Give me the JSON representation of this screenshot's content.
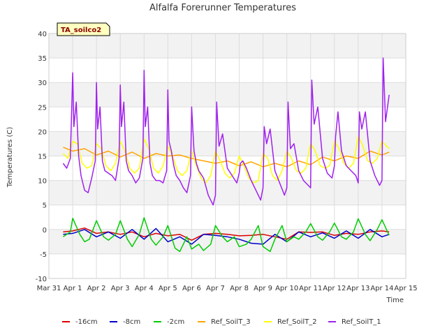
{
  "chart_data": {
    "type": "line",
    "title": "Alfalfa Forerunner Temperatures",
    "xlabel": "Time",
    "ylabel": "Temperatures (C)",
    "ylim": [
      -10,
      40
    ],
    "yticks": [
      -10,
      -5,
      0,
      5,
      10,
      15,
      20,
      25,
      30,
      35,
      40
    ],
    "xlim": [
      0,
      15
    ],
    "xtick_labels": [
      "Mar 31",
      "Apr 1",
      "Apr 2",
      "Apr 3",
      "Apr 4",
      "Apr 5",
      "Apr 6",
      "Apr 7",
      "Apr 8",
      "Apr 9",
      "Apr 10",
      "Apr 11",
      "Apr 12",
      "Apr 13",
      "Apr 14",
      "Apr 15"
    ],
    "x_unit": "days since Mar 31",
    "badge": "TA_soilco2",
    "grid": true,
    "legend_position": "bottom",
    "series": [
      {
        "name": "-16cm",
        "color": "#dd0000",
        "x": [
          0.6,
          1.0,
          1.5,
          2.0,
          2.5,
          3.0,
          3.5,
          4.0,
          4.5,
          5.0,
          5.5,
          6.0,
          6.5,
          7.0,
          7.5,
          8.0,
          8.5,
          9.0,
          9.5,
          10.0,
          10.5,
          11.0,
          11.5,
          12.0,
          12.5,
          13.0,
          13.5,
          14.0,
          14.3
        ],
        "y": [
          -0.5,
          -0.3,
          0.3,
          -0.8,
          -0.5,
          -1.0,
          -0.5,
          -1.5,
          -0.8,
          -1.3,
          -1.0,
          -2.2,
          -1.0,
          -0.8,
          -1.0,
          -1.3,
          -1.2,
          -1.0,
          -1.5,
          -2.0,
          -0.5,
          -0.6,
          -0.5,
          -1.2,
          -0.8,
          -1.0,
          -0.5,
          -0.3,
          -0.5
        ]
      },
      {
        "name": "-8cm",
        "color": "#0000cc",
        "x": [
          0.6,
          1.0,
          1.5,
          2.0,
          2.5,
          3.0,
          3.5,
          4.0,
          4.5,
          5.0,
          5.5,
          6.0,
          6.5,
          7.0,
          7.5,
          8.0,
          8.5,
          9.0,
          9.5,
          10.0,
          10.5,
          11.0,
          11.5,
          12.0,
          12.5,
          13.0,
          13.5,
          14.0,
          14.3
        ],
        "y": [
          -1.0,
          -0.8,
          0.0,
          -1.5,
          -0.5,
          -1.8,
          0.0,
          -2.0,
          0.2,
          -2.5,
          -1.5,
          -3.0,
          -1.0,
          -1.2,
          -1.5,
          -2.0,
          -2.8,
          -3.0,
          -1.0,
          -2.5,
          -0.5,
          -1.5,
          -0.7,
          -1.8,
          -0.3,
          -1.8,
          0.0,
          -1.5,
          -1.0
        ]
      },
      {
        "name": "-2cm",
        "color": "#00cc00",
        "x": [
          0.6,
          0.9,
          1.0,
          1.3,
          1.5,
          1.7,
          2.0,
          2.3,
          2.5,
          2.8,
          3.0,
          3.3,
          3.5,
          3.8,
          4.0,
          4.3,
          4.5,
          4.8,
          5.0,
          5.3,
          5.5,
          5.8,
          6.0,
          6.3,
          6.5,
          6.8,
          7.0,
          7.3,
          7.5,
          7.8,
          8.0,
          8.3,
          8.5,
          8.8,
          9.0,
          9.3,
          9.5,
          9.8,
          10.0,
          10.3,
          10.5,
          10.8,
          11.0,
          11.3,
          11.5,
          11.8,
          12.0,
          12.3,
          12.5,
          12.8,
          13.0,
          13.3,
          13.5,
          13.8,
          14.0,
          14.3
        ],
        "y": [
          -1.5,
          -0.5,
          2.3,
          -1.0,
          -2.5,
          -2.0,
          1.8,
          -1.5,
          -2.2,
          -1.0,
          1.8,
          -2.0,
          -3.5,
          -1.0,
          2.4,
          -2.0,
          -3.2,
          -1.5,
          0.8,
          -3.8,
          -4.5,
          -1.5,
          -4.0,
          -3.0,
          -4.3,
          -3.0,
          0.8,
          -1.5,
          -2.5,
          -1.5,
          -3.5,
          -3.0,
          -2.0,
          0.8,
          -3.5,
          -4.5,
          -2.0,
          0.8,
          -2.5,
          -1.5,
          -2.0,
          -0.5,
          1.2,
          -1.5,
          -2.2,
          -0.5,
          1.3,
          -1.5,
          -2.0,
          -0.5,
          2.2,
          -1.0,
          -2.3,
          0.0,
          2.0,
          -1.2
        ]
      },
      {
        "name": "Ref_SoilT_3",
        "color": "#ffa500",
        "x": [
          0.6,
          1.0,
          1.5,
          2.0,
          2.5,
          3.0,
          3.5,
          4.0,
          4.5,
          5.0,
          5.5,
          6.0,
          6.5,
          7.0,
          7.5,
          8.0,
          8.5,
          9.0,
          9.5,
          10.0,
          10.5,
          11.0,
          11.5,
          12.0,
          12.5,
          13.0,
          13.5,
          14.0,
          14.3
        ],
        "y": [
          16.8,
          16.0,
          16.5,
          15.2,
          16.0,
          14.8,
          15.8,
          14.5,
          15.5,
          15.0,
          15.2,
          14.5,
          14.0,
          13.5,
          14.0,
          13.0,
          13.8,
          12.8,
          13.5,
          12.8,
          14.0,
          13.2,
          14.8,
          14.0,
          15.0,
          14.5,
          16.0,
          15.2,
          15.8
        ]
      },
      {
        "name": "Ref_SoilT_2",
        "color": "#ffff00",
        "x": [
          0.6,
          0.8,
          1.0,
          1.2,
          1.4,
          1.6,
          1.8,
          2.0,
          2.2,
          2.4,
          2.6,
          2.8,
          3.0,
          3.2,
          3.4,
          3.6,
          3.8,
          4.0,
          4.2,
          4.4,
          4.6,
          4.8,
          5.0,
          5.2,
          5.4,
          5.6,
          5.8,
          6.0,
          6.2,
          6.4,
          6.6,
          6.8,
          7.0,
          7.2,
          7.4,
          7.6,
          7.8,
          8.0,
          8.2,
          8.4,
          8.6,
          8.8,
          9.0,
          9.2,
          9.4,
          9.6,
          9.8,
          10.0,
          10.2,
          10.4,
          10.6,
          10.8,
          11.0,
          11.2,
          11.4,
          11.6,
          11.8,
          12.0,
          12.2,
          12.4,
          12.6,
          12.8,
          13.0,
          13.2,
          13.4,
          13.6,
          13.8,
          14.0,
          14.3
        ],
        "y": [
          15.5,
          14.5,
          18.0,
          17.5,
          13.5,
          12.5,
          13.0,
          17.5,
          16.5,
          13.0,
          12.0,
          13.5,
          18.0,
          16.0,
          12.5,
          11.5,
          12.5,
          18.5,
          16.5,
          12.5,
          11.5,
          13.0,
          17.0,
          15.0,
          12.0,
          11.0,
          12.0,
          16.0,
          13.0,
          10.5,
          9.5,
          11.0,
          16.0,
          14.0,
          11.5,
          10.5,
          11.5,
          15.0,
          13.0,
          10.5,
          9.5,
          10.0,
          15.5,
          14.5,
          11.0,
          10.0,
          12.0,
          16.0,
          14.5,
          12.0,
          11.5,
          12.5,
          17.5,
          16.0,
          13.0,
          12.5,
          13.0,
          18.0,
          16.5,
          13.5,
          12.5,
          13.5,
          19.0,
          17.0,
          14.0,
          13.5,
          14.5,
          18.0,
          16.5
        ]
      },
      {
        "name": "Ref_SoilT_1",
        "color": "#a020f0",
        "x": [
          0.6,
          0.75,
          0.9,
          1.0,
          1.05,
          1.15,
          1.25,
          1.35,
          1.5,
          1.65,
          1.8,
          1.95,
          2.0,
          2.05,
          2.15,
          2.25,
          2.35,
          2.5,
          2.65,
          2.8,
          2.95,
          3.0,
          3.05,
          3.15,
          3.25,
          3.35,
          3.5,
          3.65,
          3.8,
          3.95,
          4.0,
          4.05,
          4.15,
          4.25,
          4.35,
          4.5,
          4.65,
          4.8,
          4.95,
          5.0,
          5.05,
          5.15,
          5.25,
          5.35,
          5.5,
          5.65,
          5.8,
          5.95,
          6.0,
          6.1,
          6.2,
          6.3,
          6.5,
          6.7,
          6.9,
          7.0,
          7.05,
          7.15,
          7.3,
          7.5,
          7.7,
          7.9,
          8.0,
          8.05,
          8.15,
          8.3,
          8.5,
          8.7,
          8.9,
          9.0,
          9.05,
          9.15,
          9.3,
          9.5,
          9.7,
          9.9,
          10.0,
          10.05,
          10.15,
          10.3,
          10.5,
          10.7,
          10.9,
          11.0,
          11.05,
          11.15,
          11.3,
          11.5,
          11.7,
          11.9,
          12.0,
          12.05,
          12.15,
          12.3,
          12.5,
          12.7,
          12.9,
          13.0,
          13.05,
          13.15,
          13.3,
          13.5,
          13.7,
          13.9,
          14.0,
          14.05,
          14.15,
          14.3
        ],
        "y": [
          13.5,
          12.5,
          14.5,
          32.0,
          21.0,
          26.0,
          15.0,
          11.0,
          8.0,
          7.5,
          10.5,
          14.0,
          30.0,
          20.5,
          25.0,
          14.0,
          12.0,
          11.5,
          11.0,
          10.0,
          14.5,
          29.5,
          21.0,
          26.0,
          14.0,
          12.0,
          11.0,
          9.5,
          10.5,
          14.5,
          32.5,
          21.0,
          25.0,
          13.5,
          11.0,
          10.0,
          10.0,
          9.5,
          12.0,
          28.5,
          18.0,
          16.0,
          13.0,
          11.0,
          10.0,
          8.5,
          7.5,
          11.0,
          25.0,
          16.0,
          13.5,
          12.0,
          10.5,
          7.0,
          5.0,
          7.0,
          26.0,
          17.0,
          19.5,
          12.5,
          11.0,
          9.5,
          11.5,
          13.5,
          14.0,
          12.5,
          10.0,
          8.0,
          6.0,
          8.5,
          21.0,
          17.5,
          20.5,
          12.0,
          9.5,
          7.0,
          8.5,
          26.0,
          16.5,
          17.5,
          12.0,
          10.0,
          9.0,
          8.5,
          30.5,
          21.5,
          25.0,
          14.5,
          11.5,
          10.5,
          13.0,
          19.0,
          24.0,
          16.0,
          13.0,
          12.0,
          11.0,
          9.5,
          24.0,
          20.5,
          24.0,
          14.0,
          11.0,
          9.0,
          10.0,
          35.0,
          22.0,
          27.5
        ]
      }
    ]
  }
}
